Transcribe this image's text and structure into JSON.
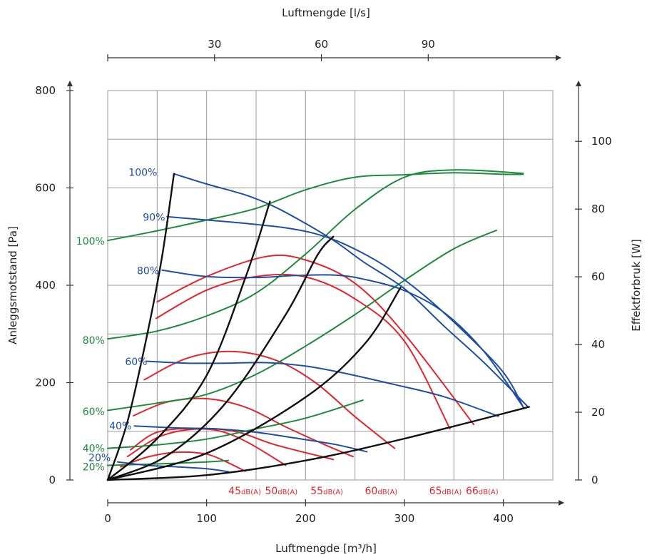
{
  "chart_data": {
    "type": "line",
    "title": "",
    "colors": {
      "blue": "#1f4fa0",
      "green": "#1f8a3c",
      "red": "#e0262c",
      "black": "#111111"
    },
    "x_axis": {
      "label": "Luftmengde [m³/h]",
      "range": [
        0,
        450
      ],
      "ticks": [
        0,
        100,
        200,
        300,
        400
      ],
      "grid": [
        0,
        50,
        100,
        150,
        200,
        250,
        300,
        350,
        400,
        450
      ]
    },
    "top_axis": {
      "label": "Luftmengde [l/s]",
      "ticks": [
        30,
        60,
        90
      ],
      "ticks_m3h": [
        108,
        216,
        324
      ]
    },
    "y_axis": {
      "label": "Anleggsmotstand [Pa]",
      "range": [
        0,
        800
      ],
      "ticks": [
        0,
        200,
        400,
        600,
        800
      ],
      "grid_step": 100
    },
    "y2_axis": {
      "label": "Effektforbruk [W]",
      "range": [
        0,
        115
      ],
      "ticks": [
        0,
        20,
        40,
        60,
        80,
        100
      ]
    },
    "pressure_series": [
      {
        "name": "100%",
        "label_at": [
          50,
          632
        ],
        "points": [
          [
            67,
            629
          ],
          [
            100,
            608
          ],
          [
            140,
            585
          ],
          [
            170,
            560
          ],
          [
            200,
            527
          ],
          [
            230,
            490
          ],
          [
            260,
            446
          ],
          [
            300,
            393
          ],
          [
            340,
            316
          ],
          [
            380,
            242
          ],
          [
            425,
            150
          ]
        ]
      },
      {
        "name": "90%",
        "label_at": [
          58,
          540
        ],
        "points": [
          [
            60,
            541
          ],
          [
            100,
            534
          ],
          [
            140,
            527
          ],
          [
            180,
            518
          ],
          [
            210,
            506
          ],
          [
            240,
            484
          ],
          [
            280,
            440
          ],
          [
            320,
            379
          ],
          [
            360,
            305
          ],
          [
            400,
            221
          ],
          [
            420,
            150
          ]
        ]
      },
      {
        "name": "80%",
        "label_at": [
          52,
          430
        ],
        "points": [
          [
            55,
            431
          ],
          [
            100,
            418
          ],
          [
            150,
            416
          ],
          [
            190,
            420
          ],
          [
            230,
            421
          ],
          [
            260,
            412
          ],
          [
            300,
            389
          ],
          [
            340,
            344
          ],
          [
            380,
            265
          ],
          [
            420,
            150
          ]
        ]
      },
      {
        "name": "60%",
        "label_at": [
          40,
          243
        ],
        "points": [
          [
            39,
            244
          ],
          [
            80,
            240
          ],
          [
            120,
            240
          ],
          [
            160,
            241
          ],
          [
            200,
            234
          ],
          [
            240,
            219
          ],
          [
            290,
            196
          ],
          [
            340,
            171
          ],
          [
            395,
            131
          ]
        ]
      },
      {
        "name": "40%",
        "label_at": [
          24,
          111
        ],
        "points": [
          [
            27,
            111
          ],
          [
            70,
            107
          ],
          [
            110,
            105
          ],
          [
            150,
            98
          ],
          [
            190,
            86
          ],
          [
            230,
            73
          ],
          [
            262,
            58
          ]
        ]
      },
      {
        "name": "20%",
        "label_at": [
          3,
          46
        ],
        "points": [
          [
            10,
            37
          ],
          [
            40,
            30
          ],
          [
            70,
            27
          ],
          [
            100,
            23
          ],
          [
            122,
            17
          ]
        ]
      }
    ],
    "power_series": [
      {
        "name": "100%",
        "label_at": [
          -3,
          491
        ],
        "points": [
          [
            0,
            492
          ],
          [
            50,
            512
          ],
          [
            100,
            534
          ],
          [
            150,
            558
          ],
          [
            200,
            596
          ],
          [
            250,
            622
          ],
          [
            300,
            627
          ],
          [
            350,
            631
          ],
          [
            400,
            628
          ],
          [
            420,
            628
          ]
        ]
      },
      {
        "name": "80%",
        "label_at": [
          -3,
          287
        ],
        "points": [
          [
            0,
            290
          ],
          [
            50,
            306
          ],
          [
            100,
            337
          ],
          [
            150,
            384
          ],
          [
            200,
            464
          ],
          [
            250,
            556
          ],
          [
            300,
            622
          ],
          [
            350,
            637
          ],
          [
            420,
            630
          ]
        ]
      },
      {
        "name": "60%",
        "label_at": [
          -3,
          141
        ],
        "points": [
          [
            0,
            143
          ],
          [
            50,
            158
          ],
          [
            100,
            176
          ],
          [
            150,
            217
          ],
          [
            200,
            275
          ],
          [
            250,
            340
          ],
          [
            300,
            410
          ],
          [
            350,
            475
          ],
          [
            393,
            513
          ]
        ]
      },
      {
        "name": "40%",
        "label_at": [
          -3,
          65
        ],
        "points": [
          [
            0,
            65
          ],
          [
            50,
            72
          ],
          [
            100,
            84
          ],
          [
            150,
            105
          ],
          [
            200,
            127
          ],
          [
            258,
            164
          ]
        ]
      },
      {
        "name": "20%",
        "label_at": [
          -3,
          27
        ],
        "points": [
          [
            0,
            30
          ],
          [
            50,
            33
          ],
          [
            100,
            37
          ],
          [
            122,
            40
          ]
        ]
      }
    ],
    "noise_curves": [
      {
        "points": [
          [
            13,
            27
          ],
          [
            40,
            47
          ],
          [
            70,
            57
          ],
          [
            100,
            53
          ],
          [
            120,
            37
          ],
          [
            139,
            18
          ]
        ]
      },
      {
        "points": [
          [
            20,
            48
          ],
          [
            50,
            87
          ],
          [
            80,
            103
          ],
          [
            110,
            102
          ],
          [
            140,
            79
          ],
          [
            180,
            30
          ]
        ]
      },
      {
        "points": [
          [
            23,
            62
          ],
          [
            50,
            98
          ],
          [
            90,
            106
          ],
          [
            130,
            99
          ],
          [
            170,
            72
          ],
          [
            228,
            42
          ]
        ]
      },
      {
        "points": [
          [
            26,
            132
          ],
          [
            60,
            160
          ],
          [
            100,
            167
          ],
          [
            140,
            149
          ],
          [
            180,
            109
          ],
          [
            220,
            72
          ],
          [
            248,
            48
          ]
        ]
      },
      {
        "points": [
          [
            37,
            206
          ],
          [
            80,
            250
          ],
          [
            125,
            264
          ],
          [
            170,
            246
          ],
          [
            210,
            200
          ],
          [
            250,
            130
          ],
          [
            290,
            65
          ]
        ]
      },
      {
        "points": [
          [
            49,
            332
          ],
          [
            100,
            390
          ],
          [
            150,
            418
          ],
          [
            200,
            417
          ],
          [
            250,
            372
          ],
          [
            300,
            285
          ],
          [
            346,
            105
          ]
        ]
      },
      {
        "points": [
          [
            50,
            366
          ],
          [
            100,
            418
          ],
          [
            160,
            459
          ],
          [
            200,
            452
          ],
          [
            250,
            404
          ],
          [
            300,
            300
          ],
          [
            370,
            114
          ]
        ]
      }
    ],
    "noise_labels": [
      {
        "value": "45",
        "unit": "dB(A)",
        "x": 122
      },
      {
        "value": "50",
        "unit": "dB(A)",
        "x": 159
      },
      {
        "value": "55",
        "unit": "dB(A)",
        "x": 205
      },
      {
        "value": "60",
        "unit": "dB(A)",
        "x": 260
      },
      {
        "value": "65",
        "unit": "dB(A)",
        "x": 325
      },
      {
        "value": "66",
        "unit": "dB(A)",
        "x": 362
      }
    ],
    "system_curves": [
      {
        "points": [
          [
            0,
            0
          ],
          [
            20,
            120
          ],
          [
            40,
            300
          ],
          [
            55,
            460
          ],
          [
            67,
            629
          ]
        ]
      },
      {
        "points": [
          [
            0,
            0
          ],
          [
            50,
            85
          ],
          [
            100,
            215
          ],
          [
            140,
            420
          ],
          [
            164,
            572
          ]
        ]
      },
      {
        "points": [
          [
            0,
            0
          ],
          [
            60,
            50
          ],
          [
            120,
            160
          ],
          [
            180,
            340
          ],
          [
            212,
            462
          ],
          [
            228,
            500
          ]
        ]
      },
      {
        "points": [
          [
            0,
            0
          ],
          [
            100,
            55
          ],
          [
            200,
            170
          ],
          [
            260,
            280
          ],
          [
            296,
            395
          ]
        ]
      },
      {
        "points": [
          [
            0,
            0
          ],
          [
            100,
            10
          ],
          [
            200,
            40
          ],
          [
            300,
            85
          ],
          [
            426,
            150
          ]
        ]
      }
    ]
  }
}
